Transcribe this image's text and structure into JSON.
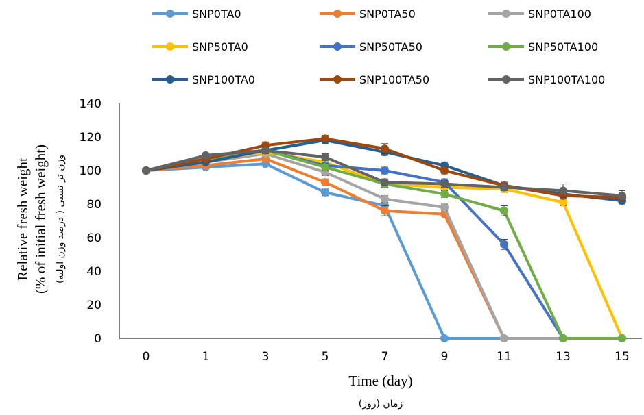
{
  "chart_data": {
    "type": "line",
    "x": [
      0,
      1,
      3,
      5,
      7,
      9,
      11,
      13,
      15
    ],
    "xtick_labels": [
      "0",
      "1",
      "3",
      "5",
      "7",
      "9",
      "11",
      "13",
      "15"
    ],
    "ylim": [
      0,
      140
    ],
    "yticks": [
      0,
      20,
      40,
      60,
      80,
      100,
      120,
      140
    ],
    "xlabel": "Time (day)",
    "xlabel_secondary": "زمان (روز)",
    "ylabel_lines": [
      "Relative fresh weight",
      "(% of initial fresh weight)",
      "وزن تر نسبی ( درصد وزن اولیه)"
    ],
    "grid": false,
    "legend_position": "top",
    "series": [
      {
        "name": "SNP0TA0",
        "color": "#5B9BD5",
        "values": [
          100,
          102,
          104,
          87,
          79,
          0,
          0,
          0,
          0
        ],
        "errors": [
          0,
          0,
          0,
          2,
          3,
          0,
          0,
          0,
          0
        ]
      },
      {
        "name": "SNP0TA50",
        "color": "#ED7D31",
        "values": [
          100,
          103,
          107,
          93,
          76,
          74,
          0,
          0,
          0
        ],
        "errors": [
          0,
          0,
          0,
          2,
          3,
          0,
          0,
          0,
          0
        ]
      },
      {
        "name": "SNP0TA100",
        "color": "#A5A5A5",
        "values": [
          100,
          105,
          110,
          99,
          83,
          78,
          0,
          0,
          0
        ],
        "errors": [
          0,
          0,
          0,
          2,
          2,
          2,
          0,
          0,
          0
        ]
      },
      {
        "name": "SNP50TA0",
        "color": "#FFC000",
        "values": [
          100,
          106,
          111,
          105,
          92,
          90,
          89,
          81,
          0
        ],
        "errors": [
          0,
          0,
          0,
          2,
          2,
          2,
          2,
          2,
          0
        ]
      },
      {
        "name": "SNP50TA50",
        "color": "#4472C4",
        "values": [
          100,
          107,
          112,
          103,
          100,
          93,
          56,
          0,
          0
        ],
        "errors": [
          0,
          0,
          0,
          2,
          2,
          2,
          3,
          0,
          0
        ]
      },
      {
        "name": "SNP50TA100",
        "color": "#70AD47",
        "values": [
          100,
          107,
          112,
          102,
          92,
          86,
          76,
          0,
          0
        ],
        "errors": [
          0,
          0,
          0,
          2,
          2,
          2,
          3,
          0,
          0
        ]
      },
      {
        "name": "SNP100TA0",
        "color": "#255E91",
        "values": [
          100,
          105,
          112,
          118,
          111,
          103,
          91,
          86,
          82
        ],
        "errors": [
          0,
          0,
          2,
          2,
          2,
          2,
          2,
          2,
          2
        ]
      },
      {
        "name": "SNP100TA50",
        "color": "#9E480E",
        "values": [
          100,
          107,
          115,
          119,
          113,
          100,
          91,
          85,
          84
        ],
        "errors": [
          0,
          0,
          2,
          2,
          3,
          2,
          2,
          2,
          2
        ]
      },
      {
        "name": "SNP100TA100",
        "color": "#636363",
        "values": [
          100,
          109,
          112,
          108,
          93,
          92,
          90,
          88,
          85
        ],
        "errors": [
          0,
          0,
          2,
          2,
          2,
          2,
          2,
          4,
          3
        ]
      }
    ]
  }
}
